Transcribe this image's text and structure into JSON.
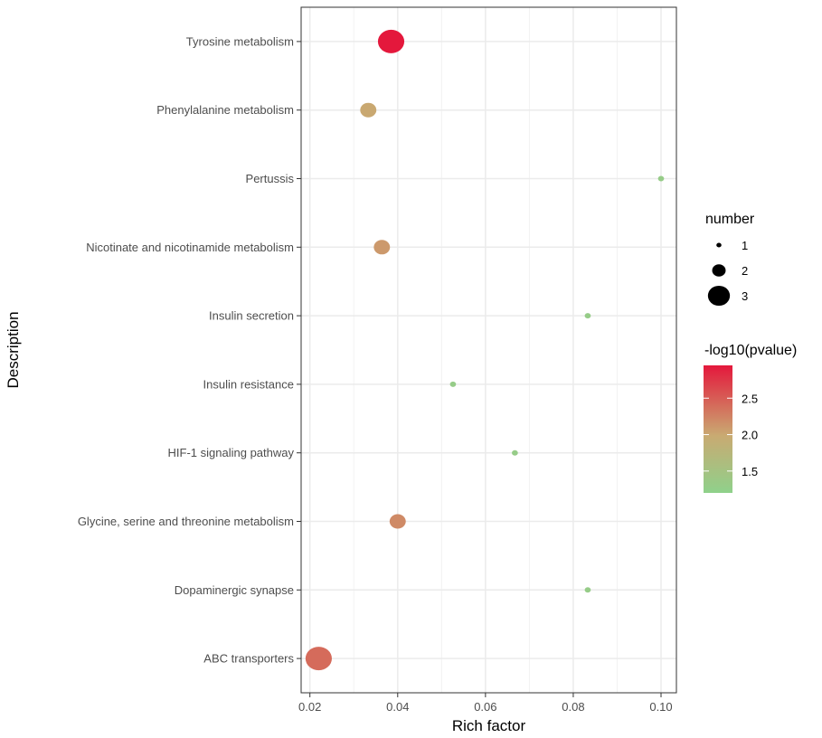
{
  "chart_data": {
    "type": "scatter",
    "xlabel": "Rich factor",
    "ylabel": "Description",
    "xlim": [
      0.018,
      0.1035
    ],
    "x_ticks": [
      "0.02",
      "0.04",
      "0.06",
      "0.08",
      "0.10"
    ],
    "x_tick_values": [
      0.02,
      0.04,
      0.06,
      0.08,
      0.1
    ],
    "grid": true,
    "categories": [
      "ABC transporters",
      "Dopaminergic synapse",
      "Glycine, serine and threonine metabolism",
      "HIF-1 signaling pathway",
      "Insulin resistance",
      "Insulin secretion",
      "Nicotinate and nicotinamide metabolism",
      "Pertussis",
      "Phenylalanine metabolism",
      "Tyrosine metabolism"
    ],
    "points": [
      {
        "category": "ABC transporters",
        "rich_factor": 0.022,
        "number": 3,
        "neg_log10_pvalue": 2.4
      },
      {
        "category": "Dopaminergic synapse",
        "rich_factor": 0.0833,
        "number": 1,
        "neg_log10_pvalue": 1.3
      },
      {
        "category": "Glycine, serine and threonine metabolism",
        "rich_factor": 0.04,
        "number": 2,
        "neg_log10_pvalue": 2.2
      },
      {
        "category": "HIF-1 signaling pathway",
        "rich_factor": 0.0667,
        "number": 1,
        "neg_log10_pvalue": 1.3
      },
      {
        "category": "Insulin resistance",
        "rich_factor": 0.0526,
        "number": 1,
        "neg_log10_pvalue": 1.3
      },
      {
        "category": "Insulin secretion",
        "rich_factor": 0.0833,
        "number": 1,
        "neg_log10_pvalue": 1.3
      },
      {
        "category": "Nicotinate and nicotinamide metabolism",
        "rich_factor": 0.0364,
        "number": 2,
        "neg_log10_pvalue": 2.1
      },
      {
        "category": "Pertussis",
        "rich_factor": 0.1,
        "number": 1,
        "neg_log10_pvalue": 1.3
      },
      {
        "category": "Phenylalanine metabolism",
        "rich_factor": 0.0333,
        "number": 2,
        "neg_log10_pvalue": 2.0
      },
      {
        "category": "Tyrosine metabolism",
        "rich_factor": 0.0385,
        "number": 3,
        "neg_log10_pvalue": 2.95
      }
    ],
    "size_legend": {
      "title": "number",
      "entries": [
        {
          "label": "1",
          "value": 1
        },
        {
          "label": "2",
          "value": 2
        },
        {
          "label": "3",
          "value": 3
        }
      ]
    },
    "color_legend": {
      "title": "-log10(pvalue)",
      "range": [
        1.2,
        2.95
      ],
      "ticks": [
        "1.5",
        "2.0",
        "2.5"
      ],
      "tick_values": [
        1.5,
        2.0,
        2.5
      ],
      "low_color": "#8fd18b",
      "mid_color": "#c9aa72",
      "high_color": "#e4183c"
    }
  }
}
